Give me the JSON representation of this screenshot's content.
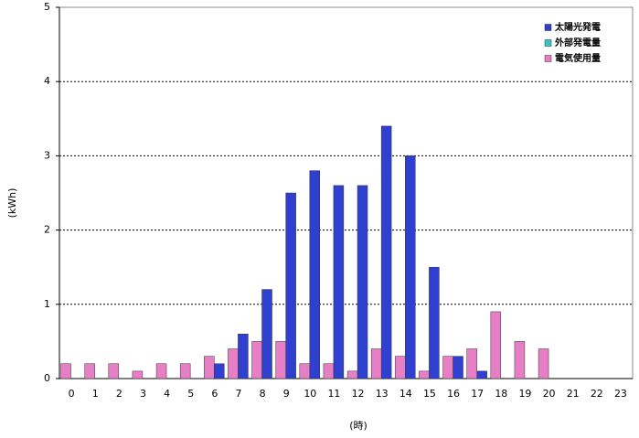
{
  "chart_data": {
    "type": "bar",
    "categories": [
      "0",
      "1",
      "2",
      "3",
      "4",
      "5",
      "6",
      "7",
      "8",
      "9",
      "10",
      "11",
      "12",
      "13",
      "14",
      "15",
      "16",
      "17",
      "18",
      "19",
      "20",
      "21",
      "22",
      "23"
    ],
    "series": [
      {
        "name": "太陽光発電",
        "color": "#2f3fcf",
        "values": [
          0,
          0,
          0,
          0,
          0,
          0,
          0.2,
          0.6,
          1.2,
          2.5,
          2.8,
          2.6,
          2.6,
          3.4,
          3.0,
          1.5,
          0.3,
          0.1,
          0,
          0,
          0,
          0,
          0,
          0
        ]
      },
      {
        "name": "外部発電量",
        "color": "#33c6c6",
        "values": [
          0,
          0,
          0,
          0,
          0,
          0,
          0,
          0,
          0,
          0,
          0,
          0,
          0,
          0,
          0,
          0,
          0,
          0,
          0,
          0,
          0,
          0,
          0,
          0
        ]
      },
      {
        "name": "電気使用量",
        "color": "#e77fc6",
        "values": [
          0.2,
          0.2,
          0.2,
          0.1,
          0.2,
          0.2,
          0.3,
          0.4,
          0.5,
          0.5,
          0.2,
          0.2,
          0.1,
          0.4,
          0.3,
          0.1,
          0.3,
          0.4,
          0.9,
          0.5,
          0.4,
          0,
          0,
          0
        ]
      }
    ],
    "ylim": [
      0,
      5
    ],
    "yticks": [
      0,
      1,
      2,
      3,
      4,
      5
    ],
    "grid": true,
    "ylabel": "(kWh)",
    "xlabel": "(時)",
    "legend": "upper right"
  }
}
